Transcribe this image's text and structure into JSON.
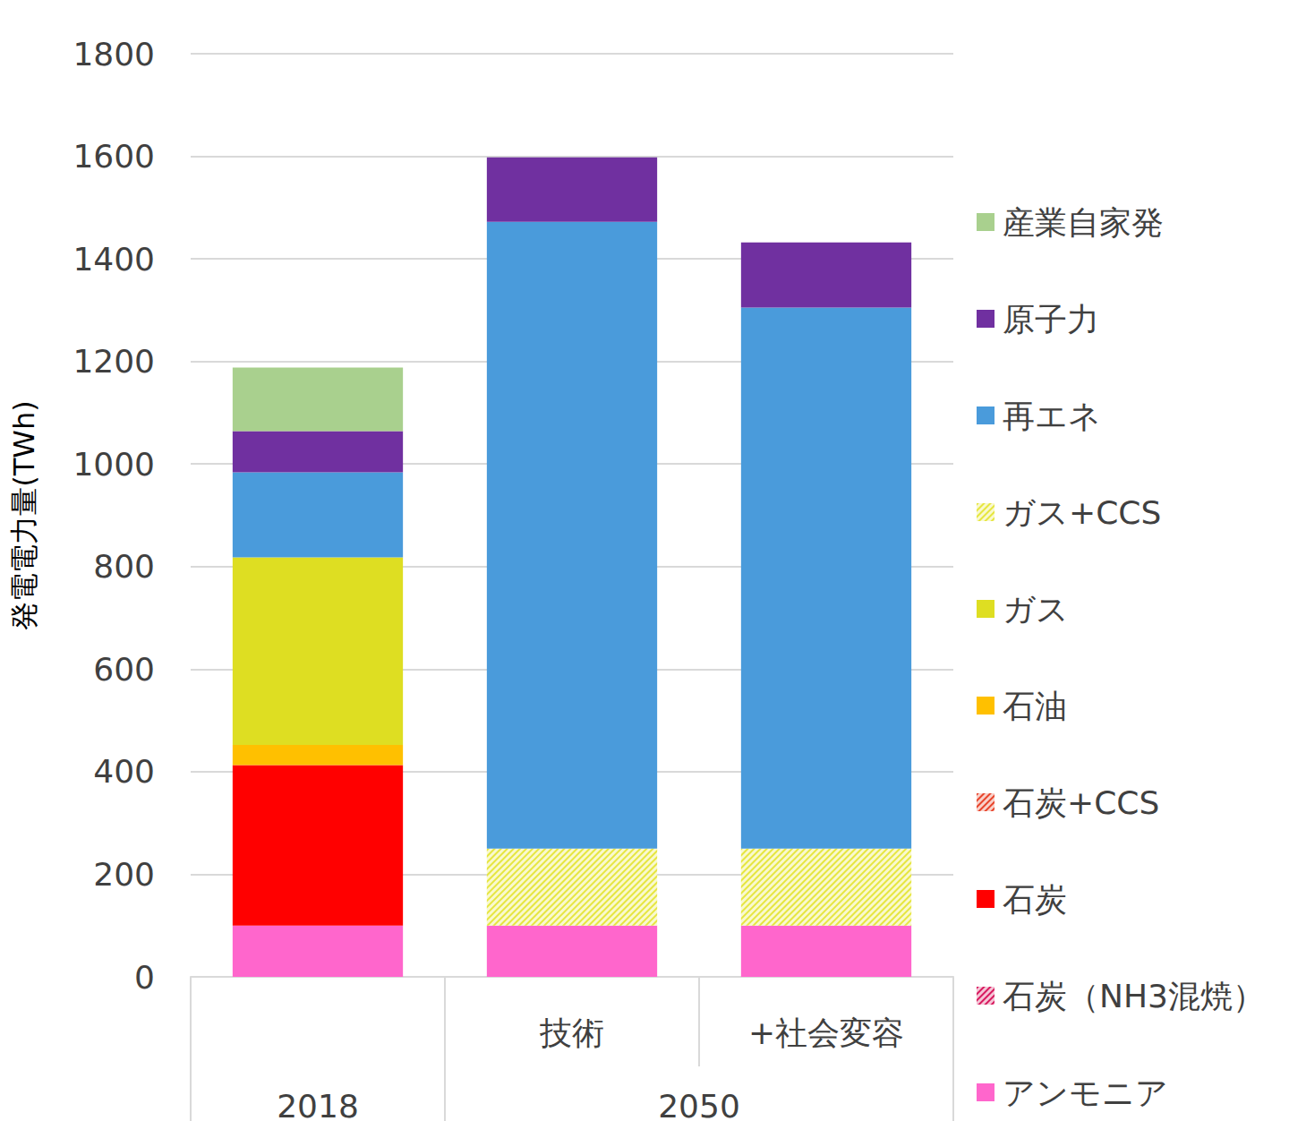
{
  "chart_data": {
    "type": "bar",
    "stacked": true,
    "y_label": "発電電力量(TWh)",
    "categories": [
      null,
      "技術",
      "+社会変容"
    ],
    "x_groups": [
      {
        "label": "2018",
        "size": 1
      },
      {
        "label": "2050",
        "size": 2
      }
    ],
    "ylim": [
      0,
      1800
    ],
    "yticks": [
      0,
      200,
      400,
      600,
      800,
      1000,
      1200,
      1400,
      1600,
      1800
    ],
    "grid": true,
    "legend": "right",
    "series": [
      {
        "name": "産業自家発",
        "color": "#a9d08e",
        "values": [
          124,
          0,
          0
        ]
      },
      {
        "name": "原子力",
        "color": "#7030a0",
        "values": [
          80,
          126,
          127
        ]
      },
      {
        "name": "再エネ",
        "color": "#4a9bdb",
        "values": [
          166,
          1222,
          1055
        ]
      },
      {
        "name": "ガス+CCS",
        "color": "#e6e640",
        "marker": "hatched",
        "values": [
          0,
          150,
          150
        ]
      },
      {
        "name": "ガス",
        "color": "#dede22",
        "values": [
          366,
          0,
          0
        ]
      },
      {
        "name": "石油",
        "color": "#ffc000",
        "values": [
          39,
          0,
          0
        ]
      },
      {
        "name": "石炭+CCS",
        "color": "#e8452c",
        "marker": "hatched",
        "values": [
          0,
          0,
          0
        ]
      },
      {
        "name": "石炭",
        "color": "#ff0000",
        "values": [
          313,
          0,
          0
        ]
      },
      {
        "name": "石炭（NH3混焼）",
        "color": "#d81b60",
        "marker": "hatched",
        "values": [
          0,
          0,
          0
        ]
      },
      {
        "name": "アンモニア",
        "color": "#ff66cc",
        "values": [
          100,
          100,
          100
        ]
      }
    ]
  }
}
